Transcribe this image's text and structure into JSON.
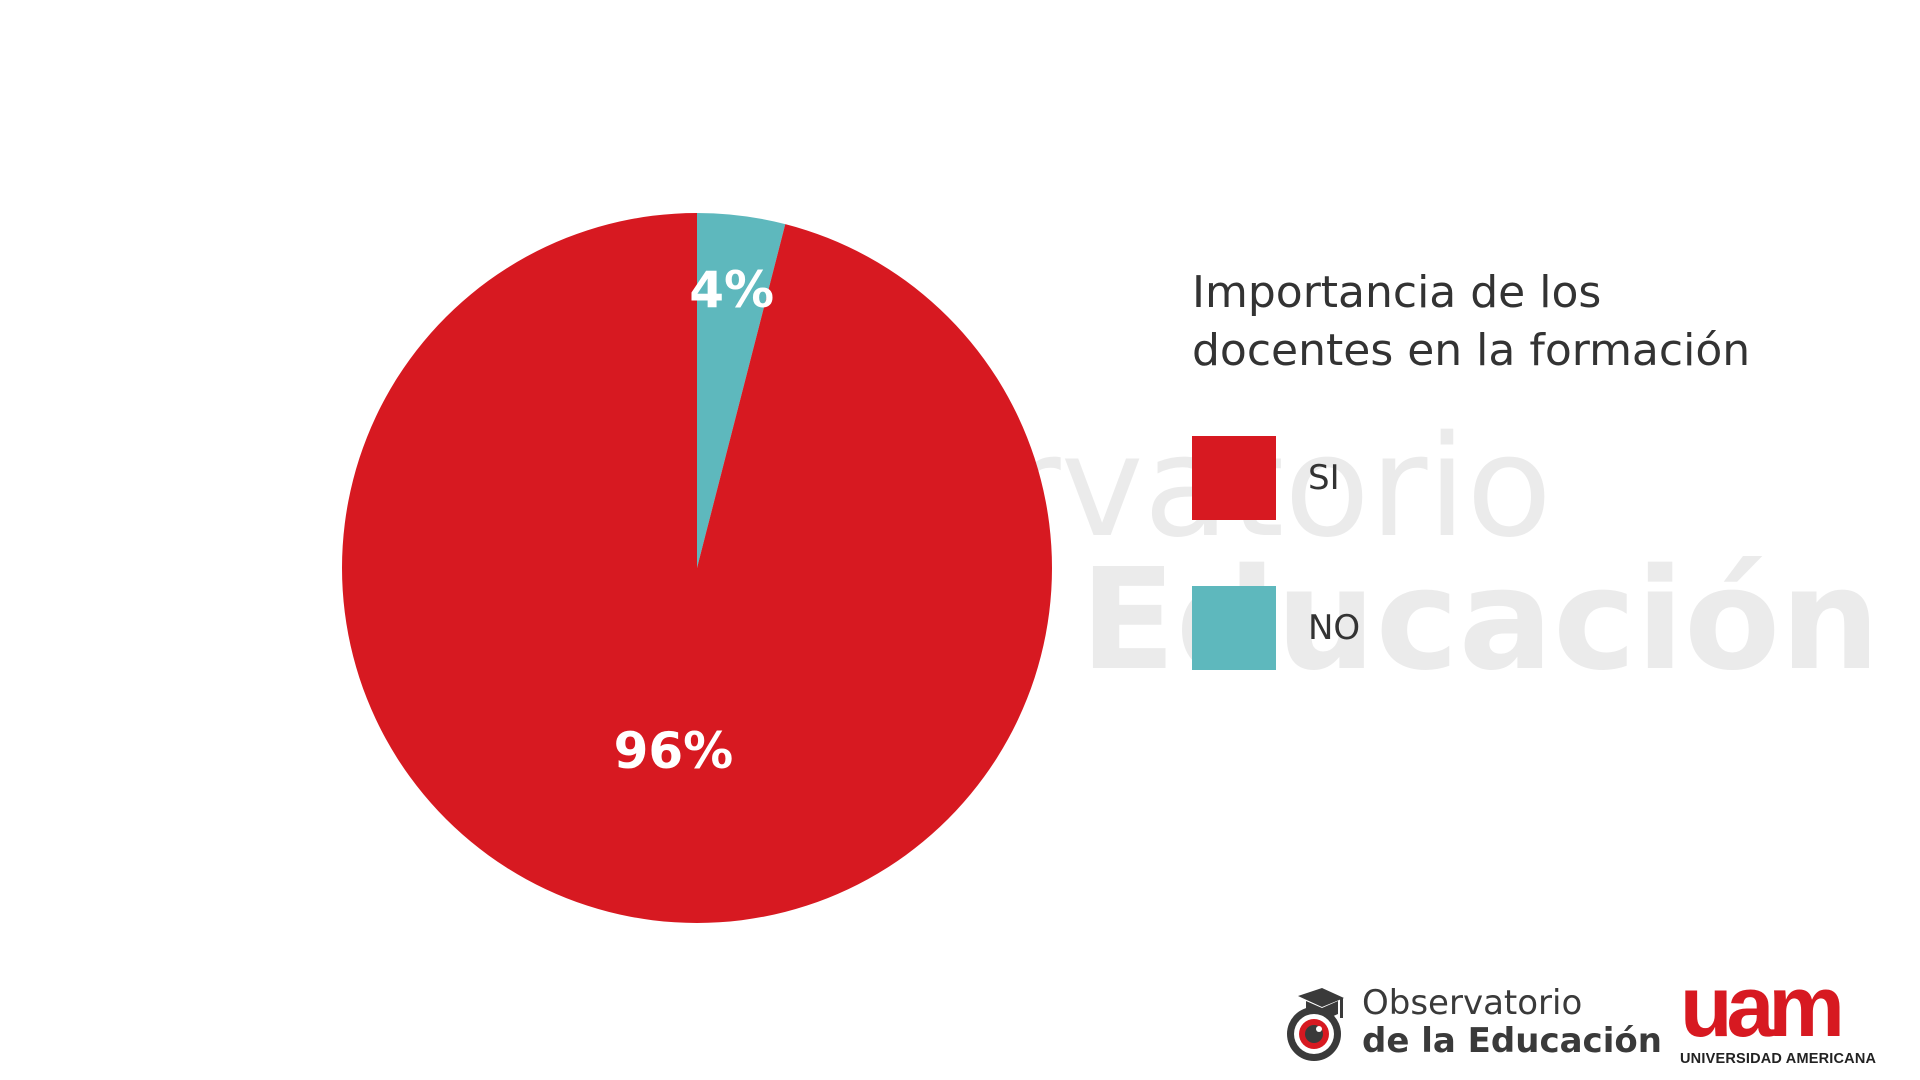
{
  "chart_data": {
    "type": "pie",
    "title_lines": [
      "Importancia de los",
      "docentes en la formación"
    ],
    "categories": [
      "SI",
      "NO"
    ],
    "values": [
      96,
      4
    ],
    "value_labels": [
      "96%",
      "4%"
    ],
    "colors": [
      "#d71921",
      "#5eb8bd"
    ],
    "legend_position": "right"
  },
  "watermark": {
    "line1": "Observatorio",
    "line2": "de la Educación"
  },
  "footer": {
    "observatorio_line1": "Observatorio",
    "observatorio_line2": "de la Educación",
    "uam_mark": "uam",
    "uam_name": "UNIVERSIDAD AMERICANA"
  }
}
